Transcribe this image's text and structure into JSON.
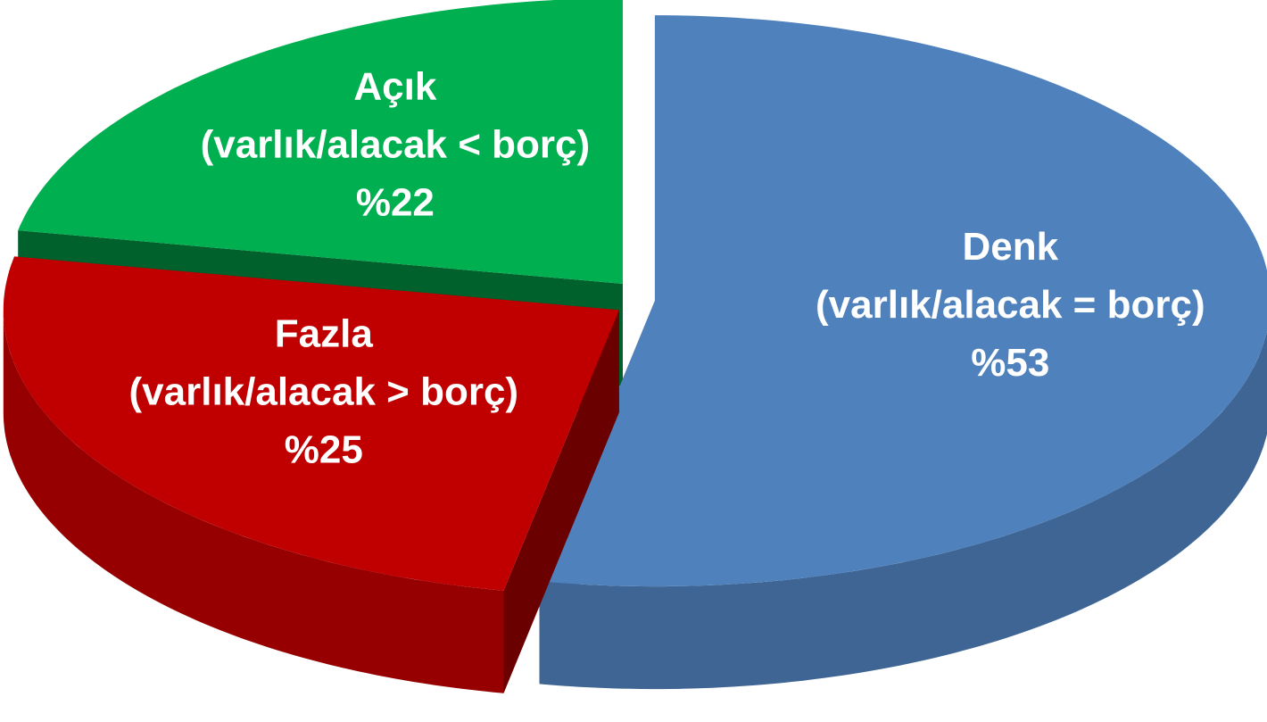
{
  "chart_data": {
    "type": "pie3d",
    "categories": [
      "Denk",
      "Fazla",
      "Açık"
    ],
    "descriptions": [
      "(varlık/alacak = borç)",
      "(varlık/alacak > borç)",
      "(varlık/alacak < borç)"
    ],
    "values": [
      53,
      25,
      22
    ],
    "value_labels": [
      "%53",
      "%25",
      "%22"
    ],
    "colors": [
      "#4f81bd",
      "#c00000",
      "#00b050"
    ]
  }
}
